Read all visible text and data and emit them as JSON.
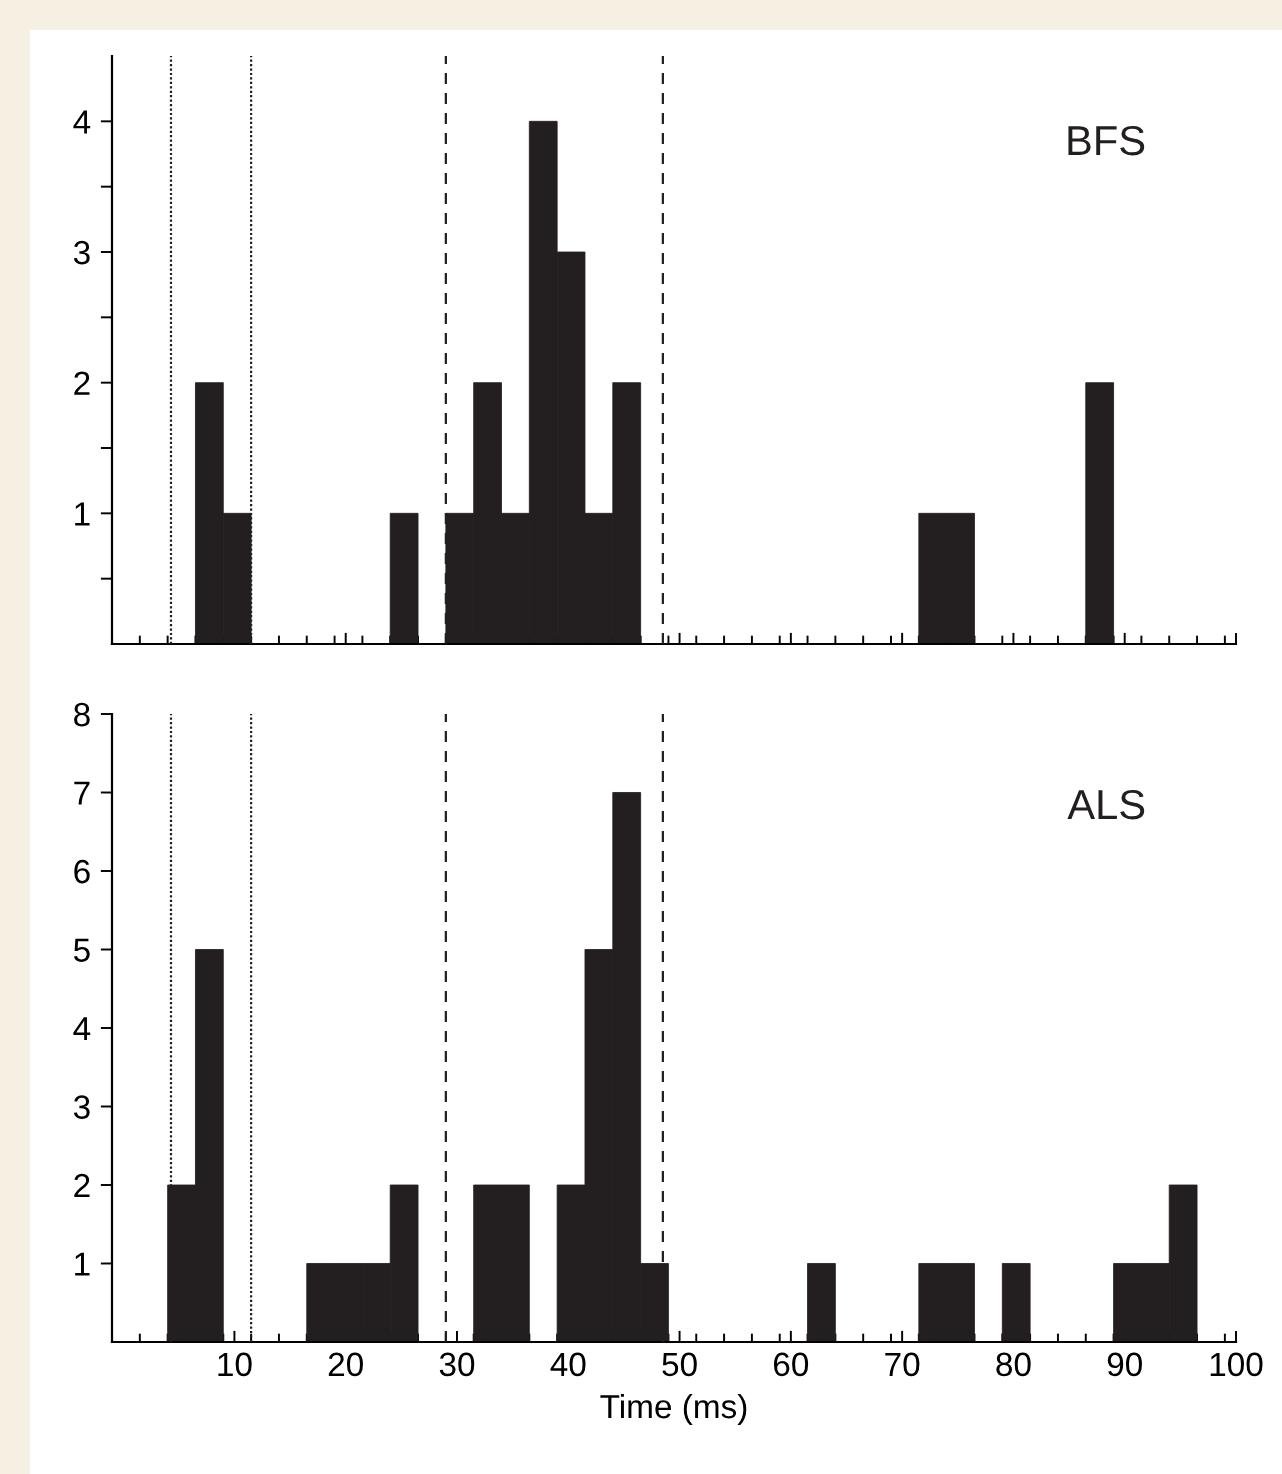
{
  "chart_data": [
    {
      "type": "histogram",
      "color": "#231f20",
      "bins": [
        1.5,
        4,
        6.5,
        9,
        11.5,
        14,
        16.5,
        19,
        21.5,
        24,
        26.5,
        29,
        31.5,
        34,
        36.5,
        39,
        41.5,
        44,
        46.5,
        49,
        51.5,
        54,
        56.5,
        59,
        61.5,
        64,
        66.5,
        69,
        71.5,
        74,
        76.5,
        79,
        81.5,
        84,
        86.5,
        89,
        91.5,
        94,
        96.5,
        99
      ],
      "values": [
        0,
        0,
        2,
        1,
        0,
        0,
        0,
        0,
        0,
        1,
        0,
        1,
        2,
        1,
        4,
        3,
        1,
        2,
        0,
        0,
        0,
        0,
        0,
        0,
        0,
        0,
        0,
        0,
        1,
        1,
        0,
        0,
        0,
        0,
        2,
        0,
        0,
        0,
        0
      ],
      "xlim": [
        -1,
        100
      ],
      "ylim": [
        0,
        4.5
      ],
      "xticks": [
        {
          "value": 10,
          "label": null
        },
        {
          "value": 20,
          "label": null
        },
        {
          "value": 30,
          "label": null
        },
        {
          "value": 40,
          "label": null
        },
        {
          "value": 50,
          "label": null
        },
        {
          "value": 60,
          "label": null
        },
        {
          "value": 70,
          "label": null
        },
        {
          "value": 80,
          "label": null
        },
        {
          "value": 90,
          "label": null
        },
        {
          "value": 100,
          "label": null
        }
      ],
      "yticks": [
        {
          "value": 0.5,
          "label": null
        },
        1,
        {
          "value": 1.5,
          "label": null
        },
        2,
        {
          "value": 2.5,
          "label": null
        },
        3,
        {
          "value": 3.5,
          "label": null
        },
        4
      ],
      "tick_labels": "y",
      "annotations": [
        "BFS"
      ],
      "ref_lines": [
        {
          "axis": "x",
          "value": 4.3,
          "line_style": "dotted",
          "color": "#231f20"
        },
        {
          "axis": "x",
          "value": 11.5,
          "line_style": "dotted",
          "color": "#231f20"
        },
        {
          "axis": "x",
          "value": 29,
          "line_style": "dashed",
          "color": "#231f20"
        },
        {
          "axis": "x",
          "value": 48.5,
          "line_style": "dashed",
          "color": "#231f20"
        }
      ]
    },
    {
      "type": "histogram",
      "color": "#231f20",
      "bins": [
        1.5,
        4,
        6.5,
        9,
        11.5,
        14,
        16.5,
        19,
        21.5,
        24,
        26.5,
        29,
        31.5,
        34,
        36.5,
        39,
        41.5,
        44,
        46.5,
        49,
        51.5,
        54,
        56.5,
        59,
        61.5,
        64,
        66.5,
        69,
        71.5,
        74,
        76.5,
        79,
        81.5,
        84,
        86.5,
        89,
        91.5,
        94,
        96.5,
        99
      ],
      "values": [
        0,
        2,
        5,
        0,
        0,
        0,
        1,
        1,
        1,
        2,
        0,
        0,
        2,
        2,
        0,
        2,
        5,
        7,
        1,
        0,
        0,
        0,
        0,
        0,
        1,
        0,
        0,
        0,
        1,
        1,
        0,
        1,
        0,
        0,
        0,
        1,
        1,
        2,
        0
      ],
      "xlim": [
        -1,
        100
      ],
      "ylim": [
        0,
        8
      ],
      "xticks": [
        10,
        20,
        30,
        40,
        50,
        60,
        70,
        80,
        90,
        100
      ],
      "yticks": [
        1,
        2,
        3,
        4,
        5,
        6,
        7,
        8
      ],
      "xlabel": "Time (ms)",
      "annotations": [
        "ALS"
      ],
      "ref_lines": [
        {
          "axis": "x",
          "value": 4.3,
          "line_style": "dotted",
          "color": "#231f20"
        },
        {
          "axis": "x",
          "value": 11.5,
          "line_style": "dotted",
          "color": "#231f20"
        },
        {
          "axis": "x",
          "value": 29,
          "line_style": "dashed",
          "color": "#231f20"
        },
        {
          "axis": "x",
          "value": 48.5,
          "line_style": "dashed",
          "color": "#231f20"
        }
      ]
    }
  ]
}
